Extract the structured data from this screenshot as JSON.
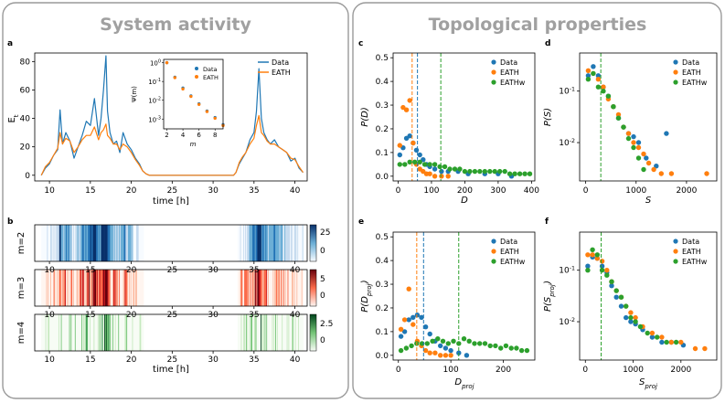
{
  "sections": {
    "left_title": "System activity",
    "right_title": "Topological properties"
  },
  "colors": {
    "data": "#1f77b4",
    "eath": "#ff7f0e",
    "eathw": "#2ca02c",
    "m2": "#08519c",
    "m3": "#cb181d",
    "m4": "#006d2c"
  },
  "chart_data": [
    {
      "id": "a",
      "panel_label": "a",
      "type": "line",
      "xlabel": "time [h]",
      "ylabel": "E_t",
      "xlim": [
        8.2,
        41.5
      ],
      "ylim": [
        -4,
        86
      ],
      "xticks": [
        10,
        15,
        20,
        25,
        30,
        35,
        40
      ],
      "yticks": [
        0,
        20,
        40,
        60,
        80
      ],
      "legend": "top-right",
      "series": [
        {
          "name": "Data",
          "color": "#1f77b4",
          "x": [
            9,
            9.5,
            10,
            10.5,
            11,
            11.3,
            11.6,
            12,
            12.5,
            13,
            13.5,
            14,
            14.5,
            15,
            15.5,
            16,
            16.3,
            16.6,
            16.9,
            17.1,
            17.4,
            17.8,
            18.2,
            18.6,
            19,
            19.5,
            20,
            20.5,
            21,
            21.4,
            21.8,
            22.2,
            25,
            30,
            32.5,
            32.8,
            33.2,
            33.6,
            34,
            34.5,
            35,
            35.3,
            35.6,
            35.9,
            36.2,
            36.6,
            37,
            37.5,
            38,
            38.5,
            39,
            39.5,
            40,
            40.5,
            41
          ],
          "y": [
            0,
            5,
            8,
            14,
            18,
            46,
            22,
            30,
            24,
            12,
            20,
            28,
            38,
            35,
            54,
            28,
            40,
            60,
            84,
            45,
            30,
            22,
            24,
            16,
            30,
            22,
            18,
            12,
            8,
            3,
            1,
            0,
            0,
            0,
            0,
            2,
            8,
            12,
            16,
            25,
            30,
            45,
            75,
            40,
            30,
            25,
            22,
            25,
            20,
            18,
            16,
            10,
            12,
            5,
            2
          ]
        },
        {
          "name": "EATH",
          "color": "#ff7f0e",
          "x": [
            9,
            9.5,
            10,
            10.5,
            11,
            11.3,
            11.6,
            12,
            12.5,
            13,
            13.5,
            14,
            14.5,
            15,
            15.5,
            16,
            16.3,
            16.6,
            16.9,
            17.1,
            17.4,
            17.8,
            18.2,
            18.6,
            19,
            19.5,
            20,
            20.5,
            21,
            21.4,
            21.8,
            22.2,
            25,
            30,
            32.5,
            32.8,
            33.2,
            33.6,
            34,
            34.5,
            35,
            35.3,
            35.6,
            35.9,
            36.2,
            36.6,
            37,
            37.5,
            38,
            38.5,
            39,
            39.5,
            40,
            40.5,
            41
          ],
          "y": [
            0,
            6,
            9,
            14,
            19,
            30,
            22,
            26,
            24,
            16,
            20,
            25,
            28,
            28,
            34,
            25,
            30,
            32,
            36,
            28,
            26,
            22,
            22,
            18,
            22,
            20,
            16,
            11,
            7,
            3,
            1,
            0,
            0,
            0,
            0,
            2,
            9,
            13,
            16,
            22,
            26,
            35,
            42,
            30,
            28,
            24,
            22,
            22,
            20,
            18,
            16,
            12,
            11,
            6,
            2
          ]
        }
      ]
    },
    {
      "id": "a_inset",
      "type": "scatter",
      "xlabel": "m",
      "ylabel": "Ψ(m)",
      "yscale": "log",
      "xlim": [
        1.6,
        9.0
      ],
      "ylim": [
        0.0003,
        1.5
      ],
      "xticks": [
        2,
        4,
        6,
        8
      ],
      "ytick_labels": [
        "10^0",
        "10^-1",
        "10^-2",
        "10^-3"
      ],
      "legend": "top-right",
      "series": [
        {
          "name": "Data",
          "color": "#1f77b4",
          "x": [
            2,
            3,
            4,
            5,
            6,
            7,
            8,
            9
          ],
          "y": [
            1.0,
            0.17,
            0.045,
            0.017,
            0.0065,
            0.0027,
            0.0012,
            0.0005
          ]
        },
        {
          "name": "EATH",
          "color": "#ff7f0e",
          "x": [
            2,
            3,
            4,
            5,
            6,
            7,
            8,
            9
          ],
          "y": [
            1.0,
            0.16,
            0.04,
            0.016,
            0.006,
            0.0025,
            0.0011,
            0.00045
          ]
        }
      ]
    },
    {
      "id": "b",
      "panel_label": "b",
      "type": "heatmap",
      "xlabel": "time [h]",
      "xlim": [
        8.2,
        41.5
      ],
      "xticks": [
        10,
        15,
        20,
        25,
        30,
        35,
        40
      ],
      "intervals": [
        [
          9,
          21.5
        ],
        [
          33,
          41
        ]
      ],
      "rows": [
        {
          "label": "m=2",
          "colorbar_ticks": [
            25,
            0
          ],
          "vmax": 30
        },
        {
          "label": "m=3",
          "colorbar_ticks": [
            5,
            0
          ],
          "vmax": 7
        },
        {
          "label": "m=4",
          "colorbar_ticks": [
            2.5,
            0.0
          ],
          "vmax": 3
        }
      ]
    },
    {
      "id": "c",
      "panel_label": "c",
      "type": "scatter",
      "xlabel": "D",
      "ylabel": "P(D)",
      "xlim": [
        -15,
        410
      ],
      "ylim": [
        -0.02,
        0.52
      ],
      "xticks": [
        0,
        100,
        200,
        300,
        400
      ],
      "yticks": [
        0.0,
        0.1,
        0.2,
        0.3,
        0.4,
        0.5
      ],
      "vlines": [
        {
          "x": 42,
          "series": "EATH"
        },
        {
          "x": 58,
          "series": "Data"
        },
        {
          "x": 128,
          "series": "EATHw"
        }
      ],
      "legend": "top-right",
      "series": [
        {
          "name": "Data",
          "color": "#1f77b4",
          "x": [
            5,
            15,
            25,
            35,
            45,
            55,
            65,
            75,
            85,
            95,
            110,
            130,
            150,
            180,
            210,
            260,
            300,
            340
          ],
          "y": [
            0.09,
            0.12,
            0.16,
            0.17,
            0.14,
            0.11,
            0.09,
            0.07,
            0.05,
            0.04,
            0.03,
            0.02,
            0.02,
            0.02,
            0.01,
            0.01,
            0.01,
            0.0
          ]
        },
        {
          "name": "EATH",
          "color": "#ff7f0e",
          "x": [
            5,
            15,
            25,
            35,
            45,
            55,
            65,
            75,
            85,
            95,
            110,
            130,
            150
          ],
          "y": [
            0.13,
            0.29,
            0.28,
            0.32,
            0.14,
            0.05,
            0.03,
            0.02,
            0.01,
            0.01,
            0.0,
            0.0,
            0.0
          ]
        },
        {
          "name": "EATHw",
          "color": "#2ca02c",
          "x": [
            5,
            20,
            35,
            50,
            65,
            80,
            95,
            110,
            125,
            140,
            155,
            170,
            185,
            200,
            215,
            230,
            245,
            260,
            275,
            290,
            305,
            320,
            335,
            350,
            365,
            380,
            395
          ],
          "y": [
            0.05,
            0.05,
            0.06,
            0.06,
            0.06,
            0.05,
            0.05,
            0.05,
            0.04,
            0.04,
            0.03,
            0.03,
            0.03,
            0.02,
            0.02,
            0.02,
            0.02,
            0.02,
            0.02,
            0.02,
            0.02,
            0.02,
            0.01,
            0.01,
            0.01,
            0.01,
            0.01
          ]
        }
      ]
    },
    {
      "id": "d",
      "panel_label": "d",
      "type": "scatter",
      "xlabel": "S",
      "ylabel": "P(S)",
      "yscale": "log",
      "xlim": [
        -120,
        2600
      ],
      "ylim": [
        0.0018,
        0.55
      ],
      "xticks": [
        0,
        1000,
        2000
      ],
      "ytick_labels": [
        "10^-1",
        "10^-2"
      ],
      "vlines": [
        {
          "x": 300,
          "series": "EATHw"
        }
      ],
      "legend": "top-right",
      "series": [
        {
          "name": "Data",
          "color": "#1f77b4",
          "x": [
            50,
            150,
            250,
            350,
            450,
            550,
            650,
            750,
            850,
            950,
            1050,
            1200,
            1400,
            1600
          ],
          "y": [
            0.2,
            0.3,
            0.2,
            0.12,
            0.08,
            0.05,
            0.03,
            0.02,
            0.015,
            0.013,
            0.01,
            0.005,
            0.0035,
            0.015
          ]
        },
        {
          "name": "EATH",
          "color": "#ff7f0e",
          "x": [
            50,
            150,
            250,
            350,
            450,
            550,
            650,
            750,
            850,
            950,
            1050,
            1150,
            1250,
            1350,
            1500,
            1700,
            2400
          ],
          "y": [
            0.25,
            0.22,
            0.17,
            0.12,
            0.07,
            0.05,
            0.035,
            0.02,
            0.015,
            0.01,
            0.008,
            0.006,
            0.004,
            0.003,
            0.0025,
            0.0025,
            0.0025
          ]
        },
        {
          "name": "EATHw",
          "color": "#2ca02c",
          "x": [
            50,
            150,
            250,
            350,
            450,
            550,
            650,
            750,
            850,
            950,
            1050,
            1150
          ],
          "y": [
            0.17,
            0.22,
            0.12,
            0.1,
            0.08,
            0.05,
            0.03,
            0.02,
            0.012,
            0.008,
            0.005,
            0.003
          ]
        }
      ]
    },
    {
      "id": "e",
      "panel_label": "e",
      "type": "scatter",
      "xlabel": "D_proj",
      "ylabel": "P(D_proj)",
      "xlim": [
        -10,
        260
      ],
      "ylim": [
        -0.02,
        0.52
      ],
      "xticks": [
        0,
        100,
        200
      ],
      "yticks": [
        0.0,
        0.1,
        0.2,
        0.3,
        0.4,
        0.5
      ],
      "vlines": [
        {
          "x": 35,
          "series": "EATH"
        },
        {
          "x": 48,
          "series": "Data"
        },
        {
          "x": 115,
          "series": "EATHw"
        }
      ],
      "legend": "top-right",
      "series": [
        {
          "name": "Data",
          "color": "#1f77b4",
          "x": [
            5,
            12,
            20,
            28,
            36,
            44,
            52,
            60,
            70,
            80,
            90,
            100,
            115,
            130
          ],
          "y": [
            0.08,
            0.1,
            0.15,
            0.16,
            0.17,
            0.16,
            0.12,
            0.09,
            0.06,
            0.04,
            0.03,
            0.02,
            0.01,
            0.0
          ]
        },
        {
          "name": "EATH",
          "color": "#ff7f0e",
          "x": [
            5,
            12,
            20,
            28,
            36,
            44,
            52,
            60,
            70,
            80,
            90,
            100
          ],
          "y": [
            0.11,
            0.15,
            0.28,
            0.13,
            0.06,
            0.04,
            0.02,
            0.01,
            0.01,
            0.0,
            0.0,
            0.0
          ]
        },
        {
          "name": "EATHw",
          "color": "#2ca02c",
          "x": [
            5,
            15,
            25,
            35,
            45,
            55,
            65,
            75,
            85,
            95,
            105,
            115,
            125,
            135,
            145,
            155,
            165,
            175,
            185,
            195,
            205,
            215,
            225,
            235,
            245
          ],
          "y": [
            0.02,
            0.03,
            0.04,
            0.05,
            0.05,
            0.05,
            0.06,
            0.07,
            0.06,
            0.05,
            0.06,
            0.05,
            0.07,
            0.06,
            0.05,
            0.05,
            0.05,
            0.04,
            0.04,
            0.03,
            0.04,
            0.03,
            0.03,
            0.02,
            0.02
          ]
        }
      ]
    },
    {
      "id": "f",
      "panel_label": "f",
      "type": "scatter",
      "xlabel": "S_proj",
      "ylabel": "P(S_proj)",
      "yscale": "log",
      "xlim": [
        -120,
        2750
      ],
      "ylim": [
        0.0018,
        0.55
      ],
      "xticks": [
        0,
        1000,
        2000
      ],
      "ytick_labels": [
        "10^-1",
        "10^-2"
      ],
      "vlines": [
        {
          "x": 330,
          "series": "EATHw"
        }
      ],
      "legend": "top-right",
      "series": [
        {
          "name": "Data",
          "color": "#1f77b4",
          "x": [
            50,
            150,
            250,
            350,
            450,
            550,
            650,
            750,
            850,
            950,
            1050,
            1200,
            1400,
            1600,
            1800,
            2050
          ],
          "y": [
            0.12,
            0.18,
            0.17,
            0.12,
            0.09,
            0.05,
            0.03,
            0.02,
            0.012,
            0.01,
            0.009,
            0.007,
            0.005,
            0.004,
            0.004,
            0.0035
          ]
        },
        {
          "name": "EATH",
          "color": "#ff7f0e",
          "x": [
            50,
            150,
            250,
            350,
            450,
            550,
            650,
            750,
            850,
            950,
            1050,
            1200,
            1400,
            1600,
            1800,
            2000,
            2300,
            2500
          ],
          "y": [
            0.2,
            0.2,
            0.17,
            0.15,
            0.1,
            0.06,
            0.04,
            0.03,
            0.02,
            0.015,
            0.012,
            0.008,
            0.006,
            0.005,
            0.004,
            0.004,
            0.003,
            0.003
          ]
        },
        {
          "name": "EATHw",
          "color": "#2ca02c",
          "x": [
            50,
            150,
            250,
            350,
            450,
            550,
            650,
            750,
            850,
            950,
            1050,
            1150,
            1300,
            1500,
            1700,
            1900
          ],
          "y": [
            0.1,
            0.25,
            0.2,
            0.1,
            0.08,
            0.06,
            0.04,
            0.03,
            0.02,
            0.012,
            0.01,
            0.008,
            0.006,
            0.005,
            0.004,
            0.004
          ]
        }
      ]
    }
  ]
}
